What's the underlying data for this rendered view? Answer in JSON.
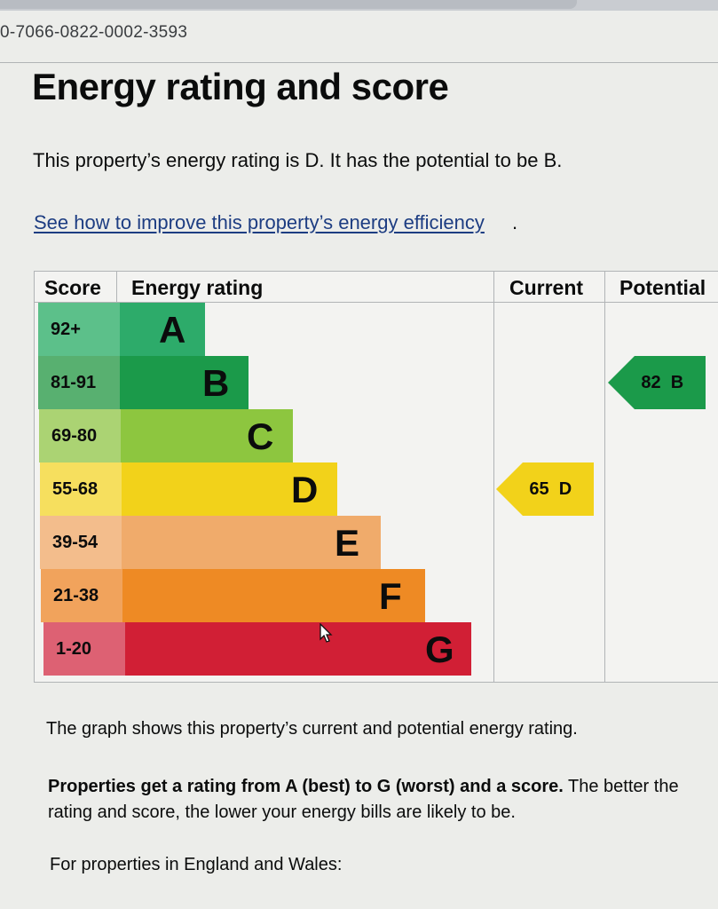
{
  "certificate": {
    "reference": "0-7066-0822-0002-3593"
  },
  "page": {
    "title": "Energy rating and score",
    "summary": "This property’s energy rating is D. It has the potential to be B.",
    "improve_link": "See how to improve this property’s energy efficiency",
    "improve_link_suffix": "."
  },
  "chart_data": {
    "type": "table",
    "headers": {
      "score": "Score",
      "rating": "Energy rating",
      "current": "Current",
      "potential": "Potential"
    },
    "bands": [
      {
        "letter": "A",
        "range": "92+",
        "bar_color": "#2dab6a",
        "score_color": "#5cc08a"
      },
      {
        "letter": "B",
        "range": "81-91",
        "bar_color": "#1b9a4a",
        "score_color": "#58b070"
      },
      {
        "letter": "C",
        "range": "69-80",
        "bar_color": "#8dc63f",
        "score_color": "#abd373"
      },
      {
        "letter": "D",
        "range": "55-68",
        "bar_color": "#f2d21a",
        "score_color": "#f6df5e"
      },
      {
        "letter": "E",
        "range": "39-54",
        "bar_color": "#f0ab6b",
        "score_color": "#f3bd8c"
      },
      {
        "letter": "F",
        "range": "21-38",
        "bar_color": "#ee8a24",
        "score_color": "#f1a35c"
      },
      {
        "letter": "G",
        "range": "1-20",
        "bar_color": "#d11f35",
        "score_color": "#dd6173"
      }
    ],
    "current": {
      "score": 65,
      "letter": "D",
      "label": "65  D",
      "color": "#f2d21a"
    },
    "potential": {
      "score": 82,
      "letter": "B",
      "label": "82  B",
      "color": "#1b9a4a"
    }
  },
  "body": {
    "caption": "The graph shows this property’s current and potential energy rating.",
    "para_bold": "Properties get a rating from A (best) to G (worst) and a score.",
    "para_rest": " The better the rating and score, the lower your energy bills are likely to be.",
    "england_wales": "For properties in England and Wales:"
  },
  "icons": {
    "cursor": "mouse-pointer-icon"
  }
}
